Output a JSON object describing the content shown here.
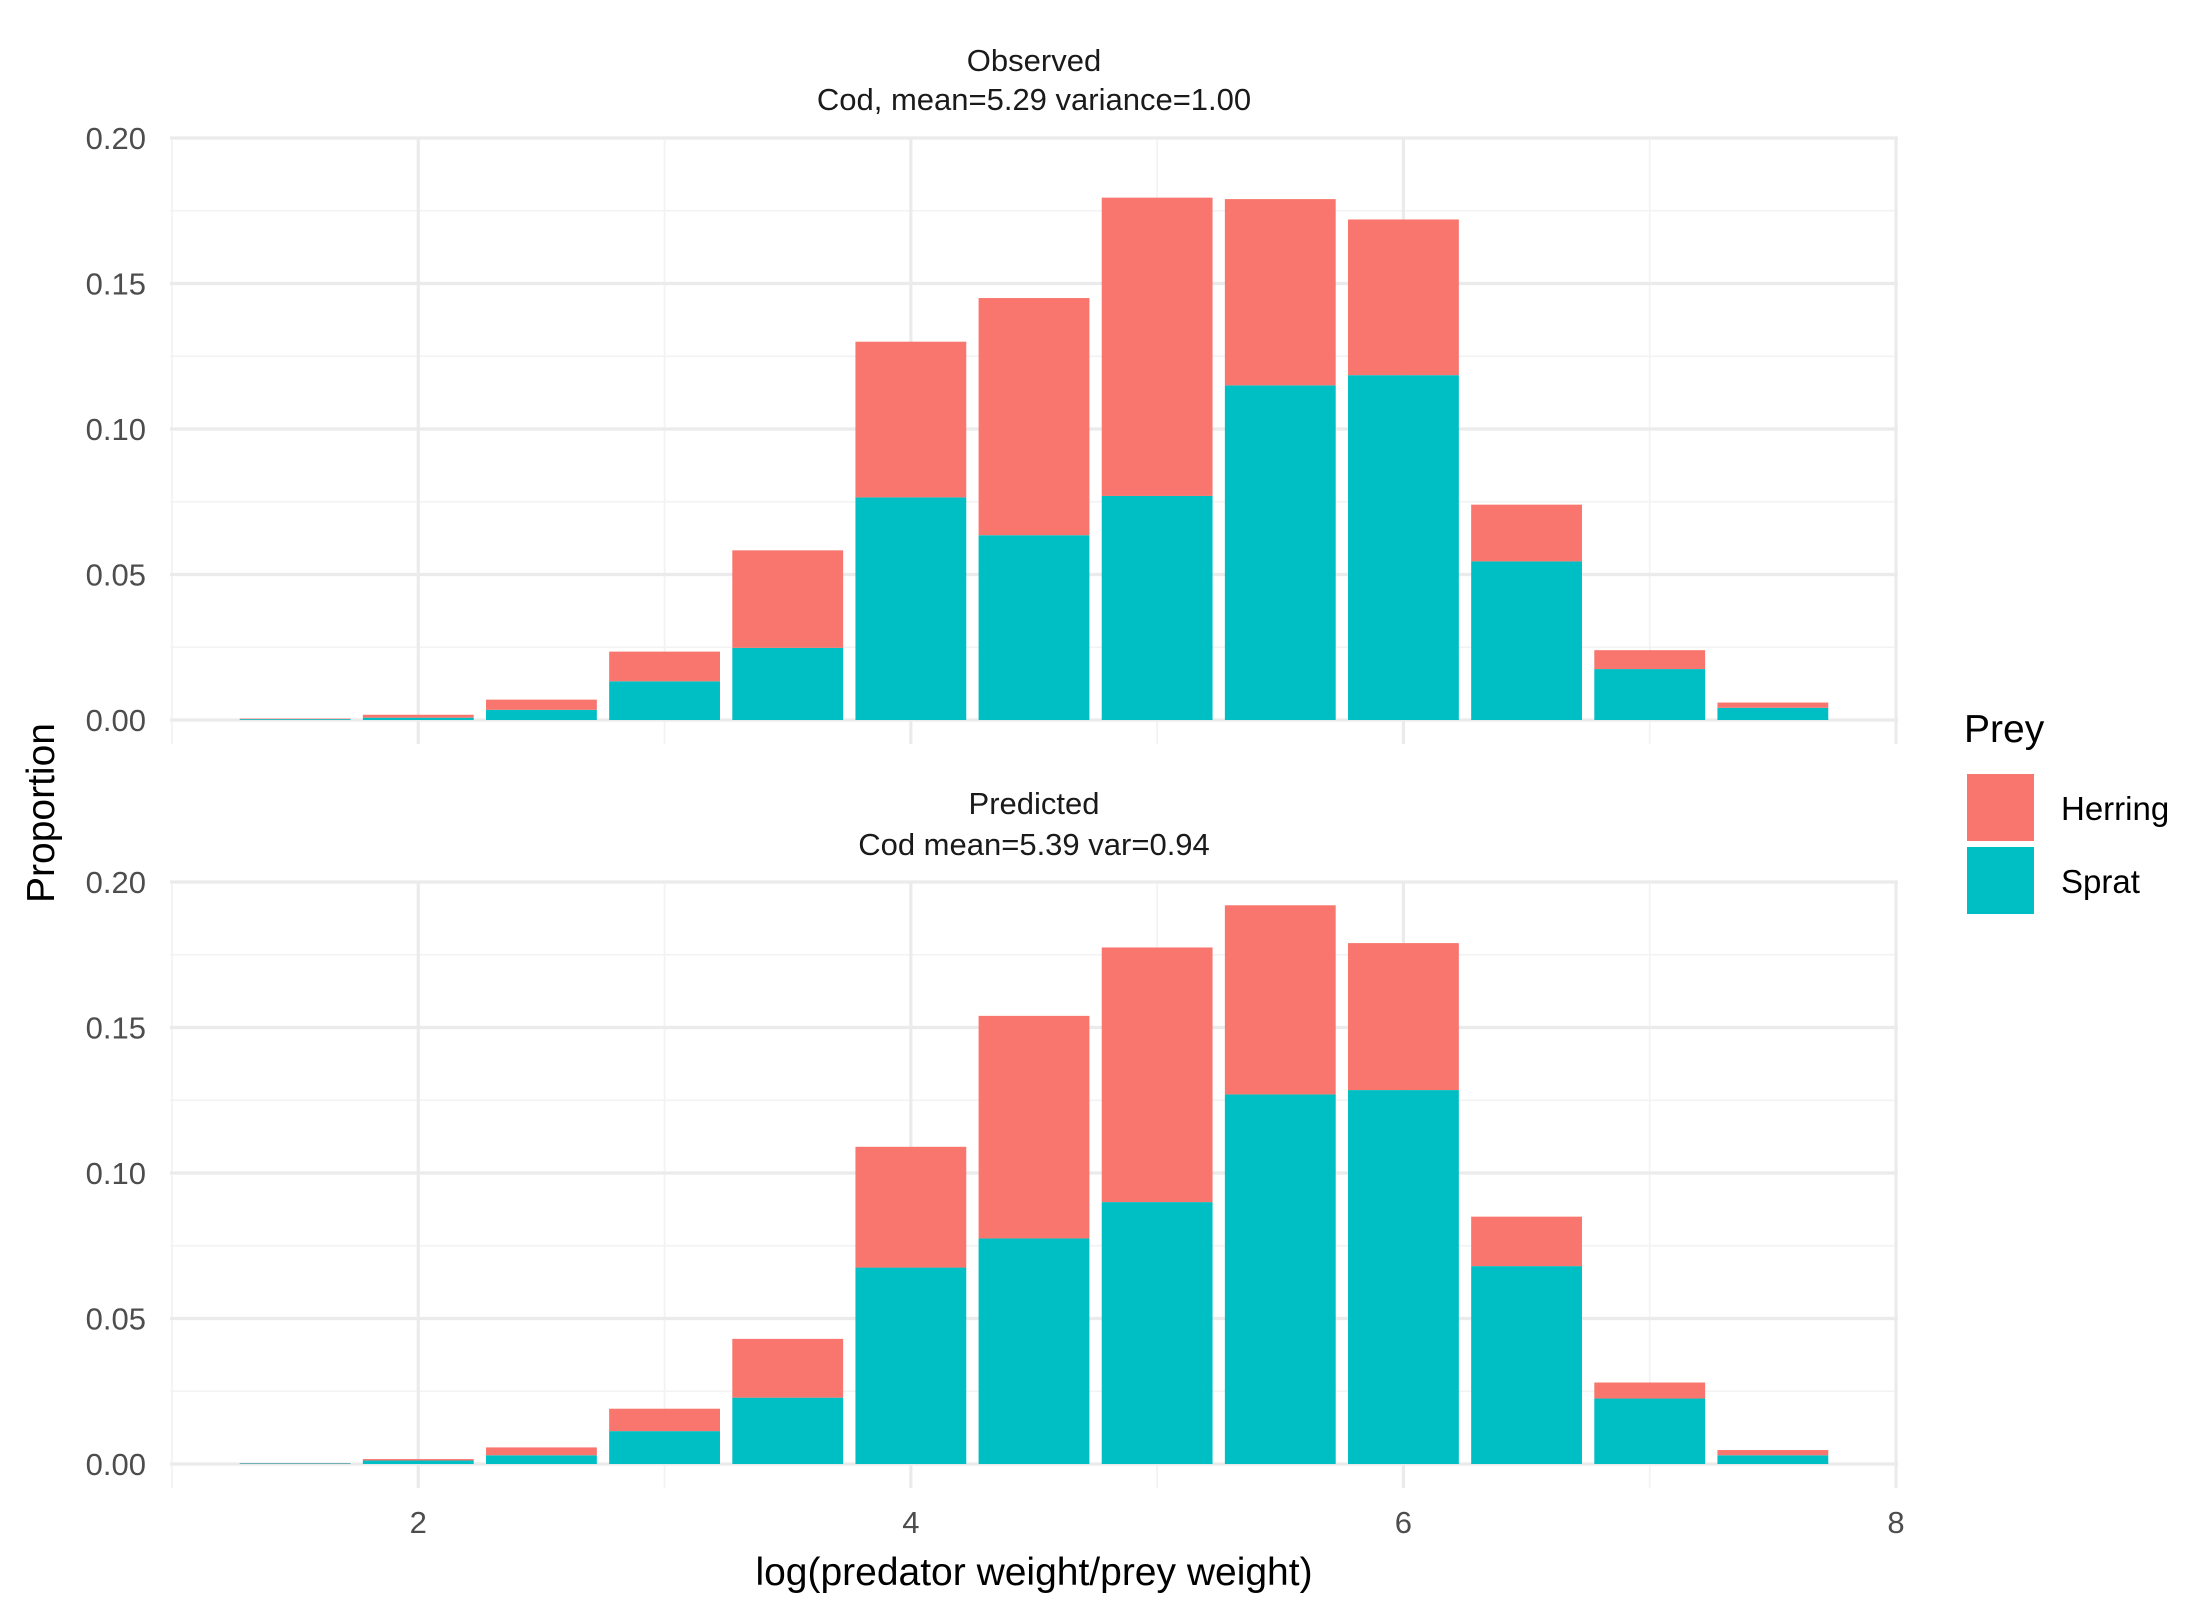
{
  "chart_data": {
    "type": "bar",
    "stacked": true,
    "xlabel": "log(predator weight/prey weight)",
    "ylabel": "Proportion",
    "xlim": [
      1,
      8
    ],
    "ylim": [
      0,
      0.2
    ],
    "x_ticks": [
      "2",
      "4",
      "6",
      "8"
    ],
    "y_ticks": [
      "0.00",
      "0.05",
      "0.10",
      "0.15",
      "0.20"
    ],
    "grid": true,
    "legend": {
      "title": "Prey",
      "position": "right",
      "entries": [
        {
          "name": "Herring",
          "color": "#F8766D"
        },
        {
          "name": "Sprat",
          "color": "#00BFC4"
        }
      ]
    },
    "x": [
      1.5,
      2.0,
      2.5,
      3.0,
      3.5,
      4.0,
      4.5,
      5.0,
      5.5,
      6.0,
      6.5,
      7.0,
      7.5
    ],
    "bar_width": 0.45,
    "panels": [
      {
        "title_line1": "Observed",
        "title_line2": "Cod, mean=5.29 variance=1.00",
        "series": [
          {
            "name": "Sprat",
            "values": [
              0.0003,
              0.0008,
              0.0035,
              0.0133,
              0.0248,
              0.0765,
              0.0635,
              0.077,
              0.115,
              0.1185,
              0.0545,
              0.0175,
              0.0042
            ]
          },
          {
            "name": "Herring",
            "values": [
              0.0002,
              0.001,
              0.0035,
              0.0102,
              0.0335,
              0.0535,
              0.0815,
              0.1025,
              0.064,
              0.0535,
              0.0195,
              0.0065,
              0.0018
            ]
          }
        ]
      },
      {
        "title_line1": "Predicted",
        "title_line2": "Cod mean=5.39 var=0.94",
        "series": [
          {
            "name": "Sprat",
            "values": [
              0.0002,
              0.0012,
              0.003,
              0.0113,
              0.0228,
              0.0675,
              0.0775,
              0.09,
              0.127,
              0.1285,
              0.068,
              0.0225,
              0.003
            ]
          },
          {
            "name": "Herring",
            "values": [
              0.0001,
              0.0005,
              0.0027,
              0.0077,
              0.0202,
              0.0415,
              0.0765,
              0.0875,
              0.065,
              0.0505,
              0.017,
              0.0055,
              0.0018
            ]
          }
        ]
      }
    ]
  }
}
